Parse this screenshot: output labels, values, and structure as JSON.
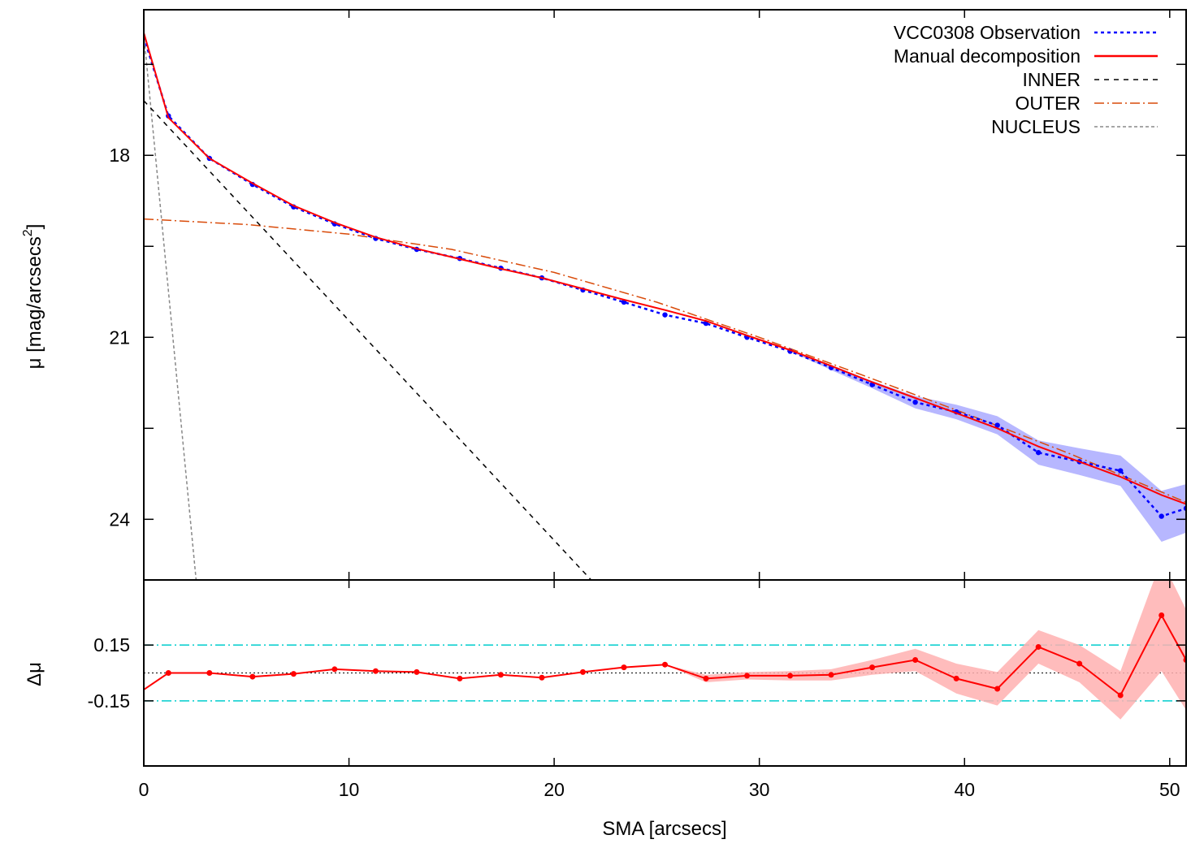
{
  "chart_data": [
    {
      "type": "line",
      "panel": "top",
      "xlabel": "",
      "ylabel": "μ [mag/arcsecs",
      "ylabel_sup": "2",
      "ylabel_suffix": "]",
      "xlim": [
        0,
        50.8
      ],
      "ylim": [
        25.0,
        15.6
      ],
      "y_inverted": true,
      "x_ticks": [
        0,
        10,
        20,
        30,
        40,
        50
      ],
      "y_ticks": [
        18,
        21,
        24
      ],
      "y_tick_labels": [
        "18",
        "21",
        "24"
      ],
      "legend_position": "top-right",
      "series": [
        {
          "name": "VCC0308 Observation",
          "style": "dotted-with-markers",
          "color": "#0000ff",
          "band_color": "#9999ff",
          "x": [
            0,
            1.2,
            3.2,
            5.3,
            7.3,
            9.3,
            11.3,
            13.3,
            15.4,
            17.4,
            19.4,
            21.4,
            23.4,
            25.4,
            27.4,
            29.4,
            31.5,
            33.5,
            35.5,
            37.6,
            39.6,
            41.6,
            43.6,
            45.6,
            47.6,
            49.6,
            50.8
          ],
          "y": [
            16.05,
            17.35,
            18.05,
            18.48,
            18.85,
            19.13,
            19.37,
            19.55,
            19.7,
            19.86,
            20.02,
            20.22,
            20.42,
            20.63,
            20.77,
            21.0,
            21.23,
            21.5,
            21.78,
            22.07,
            22.23,
            22.45,
            22.9,
            23.05,
            23.2,
            23.95,
            23.82
          ],
          "y_err": [
            0,
            0,
            0,
            0,
            0,
            0,
            0,
            0,
            0,
            0,
            0,
            0,
            0,
            0,
            0,
            0,
            0,
            0.04,
            0.06,
            0.1,
            0.12,
            0.15,
            0.2,
            0.22,
            0.25,
            0.42,
            0.4
          ]
        },
        {
          "name": "Manual decomposition",
          "style": "solid",
          "color": "#ff0000",
          "x": [
            0,
            1.2,
            3.2,
            5.3,
            7.3,
            9.3,
            11.3,
            13.3,
            15.4,
            17.4,
            19.4,
            21.4,
            23.4,
            25.4,
            27.4,
            29.4,
            31.5,
            33.5,
            35.5,
            37.6,
            39.6,
            41.6,
            43.6,
            45.6,
            47.6,
            49.6,
            50.8
          ],
          "y": [
            15.98,
            17.38,
            18.05,
            18.46,
            18.83,
            19.11,
            19.35,
            19.54,
            19.71,
            19.87,
            20.02,
            20.2,
            20.38,
            20.55,
            20.73,
            20.97,
            21.21,
            21.47,
            21.74,
            22.0,
            22.25,
            22.5,
            22.8,
            23.05,
            23.3,
            23.6,
            23.75
          ]
        },
        {
          "name": "INNER",
          "style": "dashed",
          "color": "#000000",
          "x": [
            0,
            21.8
          ],
          "y": [
            17.1,
            25.0
          ]
        },
        {
          "name": "OUTER",
          "style": "dash-dot",
          "color": "#d94b0a",
          "x": [
            0,
            5,
            10,
            15,
            20,
            25,
            30,
            35,
            40,
            45,
            50.8
          ],
          "y": [
            19.05,
            19.14,
            19.3,
            19.55,
            19.93,
            20.42,
            21.0,
            21.62,
            22.25,
            22.9,
            23.72
          ]
        },
        {
          "name": "NUCLEUS",
          "style": "short-dashed",
          "color": "#888888",
          "x": [
            0,
            2.55
          ],
          "y": [
            16.0,
            25.0
          ]
        }
      ]
    },
    {
      "type": "line",
      "panel": "bottom",
      "xlabel": "SMA [arcsecs]",
      "ylabel": "Δμ",
      "xlim": [
        0,
        50.8
      ],
      "ylim": [
        -0.5,
        0.5
      ],
      "x_ticks": [
        0,
        10,
        20,
        30,
        40,
        50
      ],
      "y_ticks": [
        0.15,
        -0.15
      ],
      "y_tick_labels": [
        "0.15",
        "-0.15"
      ],
      "reference_lines": [
        {
          "y": 0.15,
          "style": "dash-dot",
          "color": "#00cdcd"
        },
        {
          "y": -0.15,
          "style": "dash-dot",
          "color": "#00cdcd"
        },
        {
          "y": 0.0,
          "style": "dotted",
          "color": "#000000"
        }
      ],
      "series": [
        {
          "style": "solid-with-markers",
          "color": "#ff0000",
          "band_color": "#ffb0b0",
          "x": [
            0,
            1.2,
            3.2,
            5.3,
            7.3,
            9.3,
            11.3,
            13.3,
            15.4,
            17.4,
            19.4,
            21.4,
            23.4,
            25.4,
            27.4,
            29.4,
            31.5,
            33.5,
            35.5,
            37.6,
            39.6,
            41.6,
            43.6,
            45.6,
            47.6,
            49.6,
            50.8
          ],
          "y": [
            -0.09,
            0.0,
            0.0,
            -0.02,
            -0.005,
            0.02,
            0.01,
            0.005,
            -0.03,
            -0.01,
            -0.025,
            0.005,
            0.03,
            0.045,
            -0.03,
            -0.015,
            -0.015,
            -0.01,
            0.03,
            0.07,
            -0.03,
            -0.085,
            0.14,
            0.05,
            -0.12,
            0.31,
            0.07
          ],
          "y_err": [
            0,
            0,
            0,
            0,
            0,
            0,
            0,
            0,
            0,
            0,
            0,
            0,
            0,
            0,
            0.02,
            0.02,
            0.025,
            0.03,
            0.04,
            0.06,
            0.08,
            0.09,
            0.09,
            0.1,
            0.13,
            0.3,
            0.27
          ]
        }
      ]
    }
  ]
}
